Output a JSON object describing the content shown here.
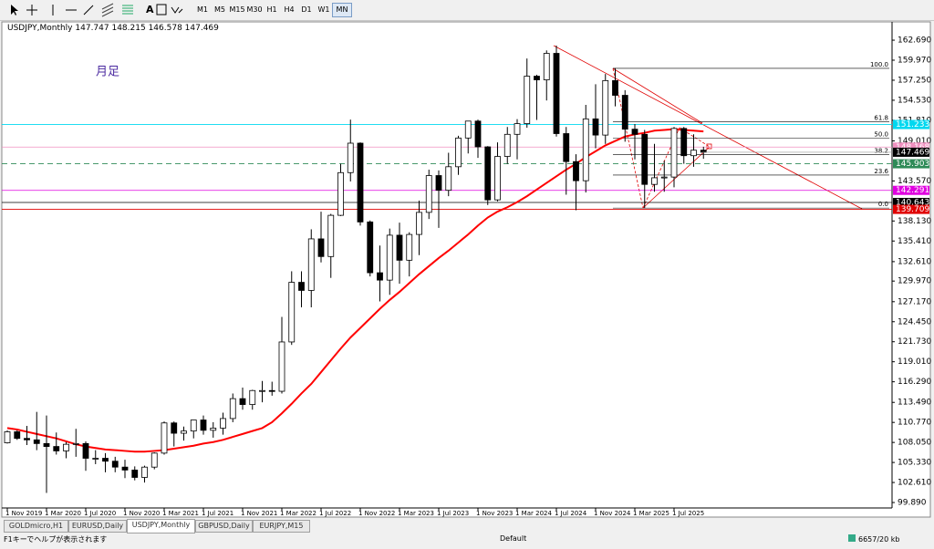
{
  "toolbar": {
    "timeframes": [
      "M1",
      "M5",
      "M15",
      "M30",
      "H1",
      "H4",
      "D1",
      "W1",
      "MN"
    ],
    "active": 8
  },
  "tabs": {
    "items": [
      "GOLDmicro,H1",
      "EURUSD,Daily",
      "USDJPY,Monthly",
      "GBPUSD,Daily",
      "EURJPY,M15"
    ],
    "active": 2
  },
  "status": {
    "help": "F1キーでヘルプが表示されます",
    "profile": "Default",
    "traffic": "6657/20 kb"
  },
  "chart_data": {
    "type": "candlestick",
    "title": "USDJPY,Monthly",
    "annotation": "月足",
    "categories": [
      "1 Nov 2019",
      null,
      null,
      null,
      "1 Mar 2020",
      null,
      null,
      null,
      "1 Jul 2020",
      null,
      null,
      null,
      "1 Nov 2020",
      null,
      null,
      null,
      "1 Mar 2021",
      null,
      null,
      null,
      "1 Jul 2021",
      null,
      null,
      null,
      "1 Nov 2021",
      null,
      null,
      null,
      "1 Mar 2022",
      null,
      null,
      null,
      "1 Jul 2022",
      null,
      null,
      null,
      "1 Nov 2022",
      null,
      null,
      null,
      "1 Mar 2023",
      null,
      null,
      null,
      "1 Jul 2023",
      null,
      null,
      null,
      "1 Nov 2023",
      null,
      null,
      null,
      "1 Mar 2024",
      null,
      null,
      null,
      "1 Jul 2024",
      null,
      null,
      null,
      "1 Nov 2024",
      null,
      null,
      null,
      "1 Mar 2025",
      null,
      null,
      null,
      "1 Jul 2025",
      null,
      null,
      null
    ],
    "open": [
      108.0,
      109.5,
      108.6,
      108.4,
      107.9,
      107.5,
      106.9,
      107.8,
      107.9,
      105.9,
      105.9,
      105.5,
      104.7,
      104.3,
      103.3,
      104.7,
      106.6,
      110.7,
      109.3,
      109.6,
      111.1,
      109.7,
      110.0,
      111.3,
      114.0,
      113.2,
      115.1,
      115.1,
      115.0,
      121.7,
      129.8,
      128.7,
      135.7,
      133.3,
      138.9,
      144.7,
      148.7,
      138.0,
      131.1,
      130.1,
      136.2,
      132.8,
      136.3,
      139.3,
      144.3,
      142.3,
      145.5,
      149.4,
      151.7,
      148.2,
      141.0,
      146.9,
      149.9,
      151.35,
      157.8,
      157.3,
      160.9,
      150.0,
      146.2,
      143.6,
      152.0,
      149.8,
      157.2,
      155.2,
      150.6,
      149.9,
      143.1,
      144.0,
      144.1,
      150.7,
      147.0,
      147.747
    ],
    "high": [
      109.7,
      109.7,
      110.3,
      112.2,
      111.7,
      109.4,
      108.1,
      109.9,
      108.2,
      107.0,
      106.6,
      106.1,
      105.7,
      104.8,
      104.9,
      106.7,
      110.9,
      110.9,
      110.2,
      111.1,
      111.7,
      110.8,
      112.1,
      114.7,
      115.5,
      115.2,
      116.4,
      116.3,
      125.1,
      131.3,
      131.3,
      137.0,
      139.4,
      139.1,
      145.9,
      151.9,
      148.8,
      138.2,
      134.8,
      137.1,
      137.9,
      136.6,
      140.9,
      145.1,
      145.0,
      147.4,
      149.7,
      151.7,
      151.9,
      148.3,
      148.8,
      150.9,
      151.97,
      160.2,
      157.99,
      161.3,
      161.95,
      150.9,
      147.2,
      153.9,
      156.7,
      158.1,
      158.9,
      155.9,
      151.3,
      150.5,
      148.6,
      146.3,
      150.9,
      150.9,
      149.9,
      148.215
    ],
    "low": [
      107.9,
      108.4,
      107.7,
      107.0,
      101.2,
      106.4,
      105.9,
      106.1,
      104.2,
      105.1,
      104.0,
      104.0,
      103.2,
      102.9,
      102.6,
      104.4,
      106.4,
      107.5,
      108.3,
      108.6,
      109.1,
      108.7,
      109.1,
      110.8,
      112.5,
      112.5,
      113.5,
      114.4,
      114.7,
      121.3,
      126.4,
      126.4,
      132.5,
      130.4,
      138.8,
      143.5,
      137.5,
      130.6,
      127.2,
      128.1,
      129.6,
      130.6,
      133.5,
      138.4,
      137.2,
      141.5,
      144.4,
      147.3,
      146.7,
      140.3,
      140.8,
      145.9,
      146.5,
      150.8,
      151.86,
      154.5,
      149.6,
      141.7,
      139.6,
      142.0,
      148.0,
      148.6,
      153.7,
      148.9,
      146.5,
      139.9,
      142.1,
      142.1,
      142.7,
      145.9,
      145.5,
      146.578
    ],
    "close": [
      109.5,
      108.6,
      108.4,
      107.9,
      107.5,
      106.9,
      107.8,
      107.9,
      105.9,
      105.9,
      105.5,
      104.7,
      104.3,
      103.3,
      104.7,
      106.6,
      110.7,
      109.3,
      109.6,
      111.1,
      109.7,
      110.0,
      111.3,
      114.0,
      113.2,
      115.1,
      115.1,
      115.0,
      121.7,
      129.8,
      128.7,
      135.7,
      133.3,
      138.9,
      144.7,
      148.7,
      138.0,
      131.1,
      130.1,
      136.2,
      132.8,
      136.3,
      139.3,
      144.3,
      142.3,
      145.5,
      149.4,
      151.7,
      148.2,
      141.0,
      146.9,
      149.9,
      151.35,
      157.8,
      157.3,
      160.9,
      150.0,
      146.2,
      143.6,
      152.0,
      149.8,
      157.2,
      155.2,
      150.6,
      149.9,
      143.1,
      144.0,
      144.1,
      150.7,
      147.0,
      147.747,
      147.469
    ],
    "ma": {
      "color": "#ff0000",
      "values": [
        110.0,
        109.8,
        109.5,
        109.2,
        108.9,
        108.6,
        108.2,
        107.8,
        107.5,
        107.3,
        107.1,
        107.0,
        106.9,
        106.8,
        106.8,
        106.9,
        107.0,
        107.2,
        107.4,
        107.6,
        107.9,
        108.1,
        108.4,
        108.8,
        109.2,
        109.6,
        110.0,
        110.8,
        112.0,
        113.3,
        114.7,
        116.0,
        117.6,
        119.2,
        120.8,
        122.3,
        123.6,
        124.9,
        126.2,
        127.4,
        128.5,
        129.7,
        130.9,
        132.0,
        133.1,
        134.1,
        135.2,
        136.3,
        137.5,
        138.6,
        139.4,
        140.0,
        140.7,
        141.5,
        142.4,
        143.3,
        144.2,
        145.1,
        145.9,
        146.8,
        147.6,
        148.4,
        149.0,
        149.6,
        149.9,
        150.1,
        150.4,
        150.5,
        150.6,
        150.5,
        150.4,
        150.3
      ]
    },
    "hlines": [
      {
        "value": 151.233,
        "color": "#00d8f0"
      },
      {
        "value": 148.168,
        "color": "#f090c0"
      },
      {
        "value": 145.903,
        "color": "#2e8b57",
        "dashed": true
      },
      {
        "value": 142.291,
        "color": "#e000e0"
      },
      {
        "value": 140.643,
        "color": "#000000"
      },
      {
        "value": 139.709,
        "color": "#e00000"
      }
    ],
    "fib": {
      "color": "#000000",
      "levels": [
        {
          "label": "100.0",
          "price": 158.87
        },
        {
          "label": "61.8",
          "price": 151.62
        },
        {
          "label": "50.0",
          "price": 149.38
        },
        {
          "label": "38.2",
          "price": 147.14
        },
        {
          "label": "23.6",
          "price": 144.37
        },
        {
          "label": "0.0",
          "price": 139.89
        }
      ]
    },
    "ylim": [
      99.15,
      165.05
    ],
    "yticks": [
      {
        "value": 162.69,
        "label": "162.690"
      },
      {
        "value": 159.97,
        "label": "159.970"
      },
      {
        "value": 157.25,
        "label": "157.250"
      },
      {
        "value": 154.53,
        "label": "154.530"
      },
      {
        "value": 151.81,
        "label": "151.810"
      },
      {
        "value": 149.01,
        "label": "149.010"
      },
      {
        "value": 143.57,
        "label": "143.570"
      },
      {
        "value": 138.13,
        "label": "138.130"
      },
      {
        "value": 135.41,
        "label": "135.410"
      },
      {
        "value": 132.61,
        "label": "132.610"
      },
      {
        "value": 129.97,
        "label": "129.970"
      },
      {
        "value": 127.17,
        "label": "127.170"
      },
      {
        "value": 124.45,
        "label": "124.450"
      },
      {
        "value": 121.73,
        "label": "121.730"
      },
      {
        "value": 119.01,
        "label": "119.010"
      },
      {
        "value": 116.29,
        "label": "116.290"
      },
      {
        "value": 113.49,
        "label": "113.490"
      },
      {
        "value": 110.77,
        "label": "110.770"
      },
      {
        "value": 108.05,
        "label": "108.050"
      },
      {
        "value": 105.33,
        "label": "105.330"
      },
      {
        "value": 102.61,
        "label": "102.610"
      },
      {
        "value": 99.89,
        "label": "99.890"
      }
    ]
  }
}
